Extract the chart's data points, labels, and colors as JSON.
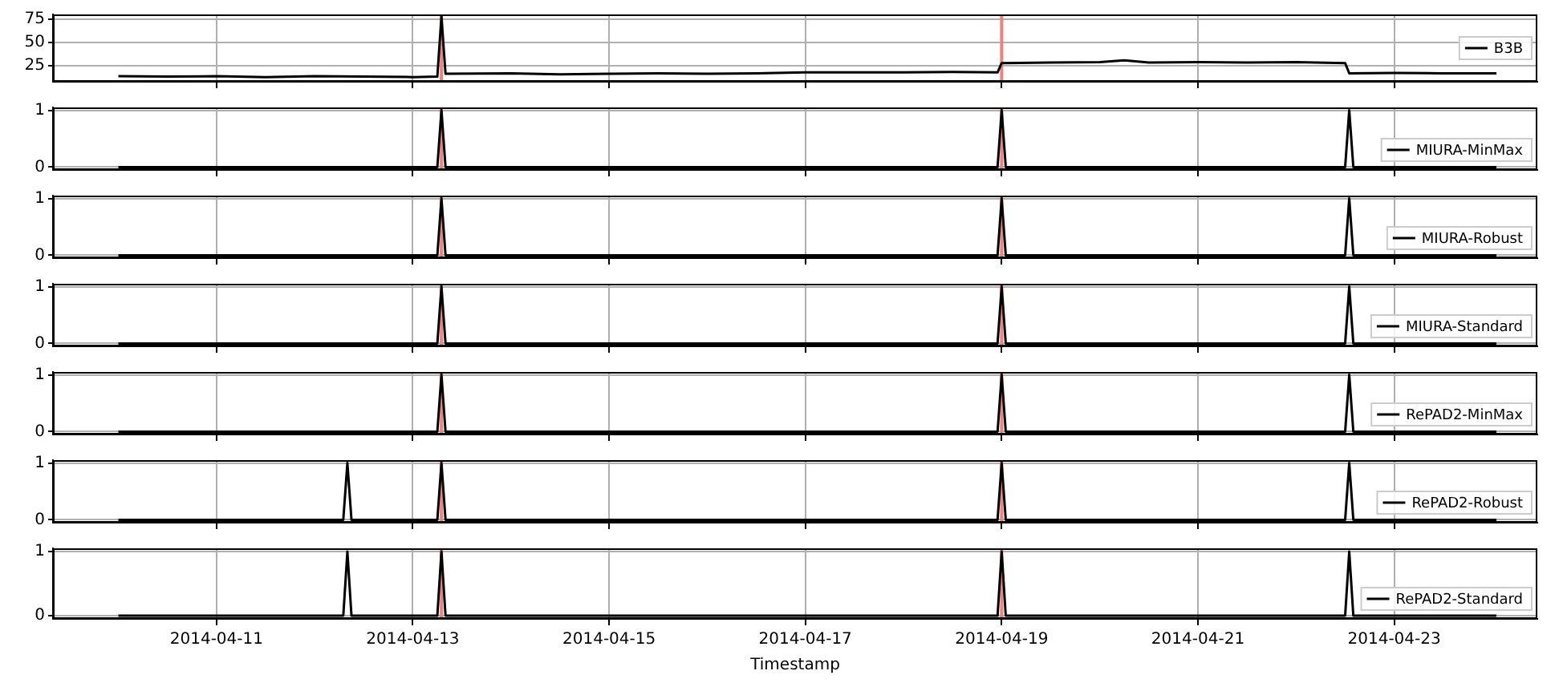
{
  "chart_data": [
    {
      "type": "line",
      "x": [
        "2014-04-10T00:00",
        "2014-04-10T12:00",
        "2014-04-11T00:00",
        "2014-04-11T12:00",
        "2014-04-12T00:00",
        "2014-04-12T12:00",
        "2014-04-13T00:00",
        "2014-04-13T06:00",
        "2014-04-13T07:00",
        "2014-04-13T08:00",
        "2014-04-14T00:00",
        "2014-04-14T12:00",
        "2014-04-15T00:00",
        "2014-04-15T12:00",
        "2014-04-16T00:00",
        "2014-04-16T12:00",
        "2014-04-17T00:00",
        "2014-04-17T12:00",
        "2014-04-18T00:00",
        "2014-04-18T12:00",
        "2014-04-18T23:00",
        "2014-04-19T00:00",
        "2014-04-19T12:00",
        "2014-04-20T00:00",
        "2014-04-20T06:00",
        "2014-04-20T12:00",
        "2014-04-21T00:00",
        "2014-04-21T12:00",
        "2014-04-22T00:00",
        "2014-04-22T12:00",
        "2014-04-22T13:00",
        "2014-04-23T00:00",
        "2014-04-23T12:00",
        "2014-04-24T01:00"
      ],
      "series": [
        {
          "name": "B3B",
          "color": "#000000",
          "values": [
            14,
            13.5,
            14,
            13,
            14,
            13.5,
            13,
            13.5,
            78,
            16.5,
            17,
            16,
            16.5,
            17,
            16.5,
            17,
            18,
            18,
            18,
            18.5,
            18,
            28,
            28.5,
            29,
            31,
            28.5,
            29,
            28.5,
            29,
            28,
            17,
            17.5,
            17,
            17
          ]
        }
      ],
      "xlim": [
        "2014-04-09T08:00",
        "2014-04-24T11:00"
      ],
      "xticks": [
        "2014-04-11",
        "2014-04-13",
        "2014-04-15",
        "2014-04-17",
        "2014-04-19",
        "2014-04-21",
        "2014-04-23"
      ],
      "ylim": [
        8,
        80
      ],
      "yticks": [
        25,
        50,
        75
      ],
      "tick_labels": "y",
      "grid": true,
      "legend": "right",
      "ref_lines": [
        {
          "axis": "x",
          "value": "2014-04-13T07:00",
          "color": "#f08080"
        },
        {
          "axis": "x",
          "value": "2014-04-19T00:00",
          "color": "#f08080"
        }
      ]
    },
    {
      "type": "line",
      "x": [
        "2014-04-10T00:00",
        "2014-04-13T06:00",
        "2014-04-13T07:00",
        "2014-04-13T08:00",
        "2014-04-18T23:00",
        "2014-04-19T00:00",
        "2014-04-19T01:00",
        "2014-04-22T12:00",
        "2014-04-22T13:00",
        "2014-04-22T14:00",
        "2014-04-24T01:00"
      ],
      "series": [
        {
          "name": "MIURA-MinMax",
          "color": "#000000",
          "values": [
            0,
            0,
            1,
            0,
            0,
            1,
            0,
            0,
            1,
            0,
            0
          ]
        }
      ],
      "xlim": [
        "2014-04-09T08:00",
        "2014-04-24T11:00"
      ],
      "xticks": [
        "2014-04-11",
        "2014-04-13",
        "2014-04-15",
        "2014-04-17",
        "2014-04-19",
        "2014-04-21",
        "2014-04-23"
      ],
      "ylim": [
        -0.05,
        1.05
      ],
      "yticks": [
        0,
        1
      ],
      "tick_labels": "y",
      "grid": true,
      "legend": "lower right",
      "ref_lines": [
        {
          "axis": "x",
          "value": "2014-04-13T07:00",
          "color": "#f08080"
        },
        {
          "axis": "x",
          "value": "2014-04-19T00:00",
          "color": "#f08080"
        }
      ]
    },
    {
      "type": "line",
      "x": [
        "2014-04-10T00:00",
        "2014-04-13T06:00",
        "2014-04-13T07:00",
        "2014-04-13T08:00",
        "2014-04-18T23:00",
        "2014-04-19T00:00",
        "2014-04-19T01:00",
        "2014-04-22T12:00",
        "2014-04-22T13:00",
        "2014-04-22T14:00",
        "2014-04-24T01:00"
      ],
      "series": [
        {
          "name": "MIURA-Robust",
          "color": "#000000",
          "values": [
            0,
            0,
            1,
            0,
            0,
            1,
            0,
            0,
            1,
            0,
            0
          ]
        }
      ],
      "xlim": [
        "2014-04-09T08:00",
        "2014-04-24T11:00"
      ],
      "xticks": [
        "2014-04-11",
        "2014-04-13",
        "2014-04-15",
        "2014-04-17",
        "2014-04-19",
        "2014-04-21",
        "2014-04-23"
      ],
      "ylim": [
        -0.05,
        1.05
      ],
      "yticks": [
        0,
        1
      ],
      "tick_labels": "y",
      "grid": true,
      "legend": "lower right",
      "ref_lines": [
        {
          "axis": "x",
          "value": "2014-04-13T07:00",
          "color": "#f08080"
        },
        {
          "axis": "x",
          "value": "2014-04-19T00:00",
          "color": "#f08080"
        }
      ]
    },
    {
      "type": "line",
      "x": [
        "2014-04-10T00:00",
        "2014-04-13T06:00",
        "2014-04-13T07:00",
        "2014-04-13T08:00",
        "2014-04-18T23:00",
        "2014-04-19T00:00",
        "2014-04-19T01:00",
        "2014-04-22T12:00",
        "2014-04-22T13:00",
        "2014-04-22T14:00",
        "2014-04-24T01:00"
      ],
      "series": [
        {
          "name": "MIURA-Standard",
          "color": "#000000",
          "values": [
            0,
            0,
            1,
            0,
            0,
            1,
            0,
            0,
            1,
            0,
            0
          ]
        }
      ],
      "xlim": [
        "2014-04-09T08:00",
        "2014-04-24T11:00"
      ],
      "xticks": [
        "2014-04-11",
        "2014-04-13",
        "2014-04-15",
        "2014-04-17",
        "2014-04-19",
        "2014-04-21",
        "2014-04-23"
      ],
      "ylim": [
        -0.05,
        1.05
      ],
      "yticks": [
        0,
        1
      ],
      "tick_labels": "y",
      "grid": true,
      "legend": "lower right",
      "ref_lines": [
        {
          "axis": "x",
          "value": "2014-04-13T07:00",
          "color": "#f08080"
        },
        {
          "axis": "x",
          "value": "2014-04-19T00:00",
          "color": "#f08080"
        }
      ]
    },
    {
      "type": "line",
      "x": [
        "2014-04-10T00:00",
        "2014-04-13T06:00",
        "2014-04-13T07:00",
        "2014-04-13T08:00",
        "2014-04-18T23:00",
        "2014-04-19T00:00",
        "2014-04-19T01:00",
        "2014-04-22T12:00",
        "2014-04-22T13:00",
        "2014-04-22T14:00",
        "2014-04-24T01:00"
      ],
      "series": [
        {
          "name": "RePAD2-MinMax",
          "color": "#000000",
          "values": [
            0,
            0,
            1,
            0,
            0,
            1,
            0,
            0,
            1,
            0,
            0
          ]
        }
      ],
      "xlim": [
        "2014-04-09T08:00",
        "2014-04-24T11:00"
      ],
      "xticks": [
        "2014-04-11",
        "2014-04-13",
        "2014-04-15",
        "2014-04-17",
        "2014-04-19",
        "2014-04-21",
        "2014-04-23"
      ],
      "ylim": [
        -0.05,
        1.05
      ],
      "yticks": [
        0,
        1
      ],
      "tick_labels": "y",
      "grid": true,
      "legend": "lower right",
      "ref_lines": [
        {
          "axis": "x",
          "value": "2014-04-13T07:00",
          "color": "#f08080"
        },
        {
          "axis": "x",
          "value": "2014-04-19T00:00",
          "color": "#f08080"
        }
      ]
    },
    {
      "type": "line",
      "x": [
        "2014-04-10T00:00",
        "2014-04-12T07:00",
        "2014-04-12T08:00",
        "2014-04-12T09:00",
        "2014-04-13T06:00",
        "2014-04-13T07:00",
        "2014-04-13T08:00",
        "2014-04-18T23:00",
        "2014-04-19T00:00",
        "2014-04-19T01:00",
        "2014-04-22T12:00",
        "2014-04-22T13:00",
        "2014-04-22T14:00",
        "2014-04-24T01:00"
      ],
      "series": [
        {
          "name": "RePAD2-Robust",
          "color": "#000000",
          "values": [
            0,
            0,
            1,
            0,
            0,
            1,
            0,
            0,
            1,
            0,
            0,
            1,
            0,
            0
          ]
        }
      ],
      "xlim": [
        "2014-04-09T08:00",
        "2014-04-24T11:00"
      ],
      "xticks": [
        "2014-04-11",
        "2014-04-13",
        "2014-04-15",
        "2014-04-17",
        "2014-04-19",
        "2014-04-21",
        "2014-04-23"
      ],
      "ylim": [
        -0.05,
        1.05
      ],
      "yticks": [
        0,
        1
      ],
      "tick_labels": "y",
      "grid": true,
      "legend": "lower right",
      "ref_lines": [
        {
          "axis": "x",
          "value": "2014-04-13T07:00",
          "color": "#f08080"
        },
        {
          "axis": "x",
          "value": "2014-04-19T00:00",
          "color": "#f08080"
        }
      ]
    },
    {
      "type": "line",
      "xlabel": "Timestamp",
      "x": [
        "2014-04-10T00:00",
        "2014-04-12T07:00",
        "2014-04-12T08:00",
        "2014-04-12T09:00",
        "2014-04-13T06:00",
        "2014-04-13T07:00",
        "2014-04-13T08:00",
        "2014-04-18T23:00",
        "2014-04-19T00:00",
        "2014-04-19T01:00",
        "2014-04-22T12:00",
        "2014-04-22T13:00",
        "2014-04-22T14:00",
        "2014-04-24T01:00"
      ],
      "series": [
        {
          "name": "RePAD2-Standard",
          "color": "#000000",
          "values": [
            0,
            0,
            1,
            0,
            0,
            1,
            0,
            0,
            1,
            0,
            0,
            1,
            0,
            0
          ]
        }
      ],
      "xlim": [
        "2014-04-09T08:00",
        "2014-04-24T11:00"
      ],
      "xticks": [
        "2014-04-11",
        "2014-04-13",
        "2014-04-15",
        "2014-04-17",
        "2014-04-19",
        "2014-04-21",
        "2014-04-23"
      ],
      "ylim": [
        -0.05,
        1.05
      ],
      "yticks": [
        0,
        1
      ],
      "grid": true,
      "legend": "lower right",
      "ref_lines": [
        {
          "axis": "x",
          "value": "2014-04-13T07:00",
          "color": "#f08080"
        },
        {
          "axis": "x",
          "value": "2014-04-19T00:00",
          "color": "#f08080"
        }
      ]
    }
  ]
}
